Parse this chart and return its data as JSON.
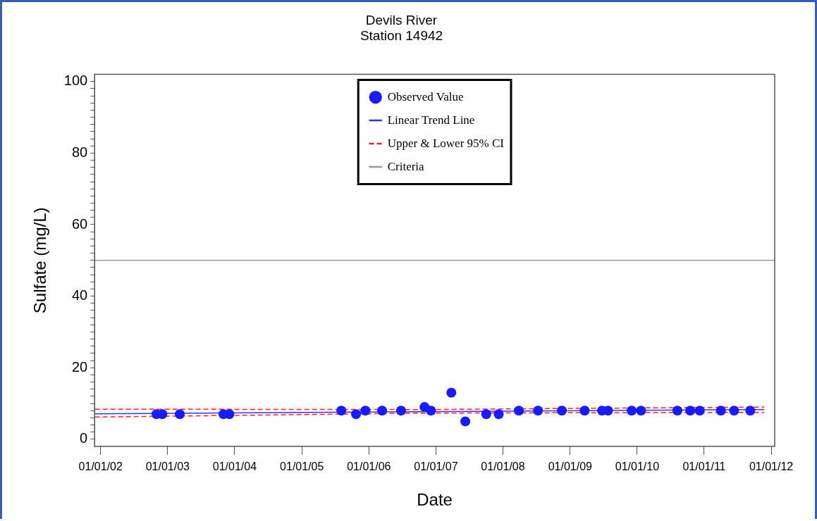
{
  "chart_data": {
    "type": "scatter",
    "title": "Devils River",
    "subtitle": "Station 14942",
    "xlabel": "Date",
    "ylabel": "Sulfate (mg/L)",
    "xlim": [
      "2001-11-29",
      "2012-01-20"
    ],
    "xticks": [
      {
        "value": "2002-01-01",
        "label": "01/01/02"
      },
      {
        "value": "2003-01-01",
        "label": "01/01/03"
      },
      {
        "value": "2004-01-01",
        "label": "01/01/04"
      },
      {
        "value": "2005-01-01",
        "label": "01/01/05"
      },
      {
        "value": "2006-01-01",
        "label": "01/01/06"
      },
      {
        "value": "2007-01-01",
        "label": "01/01/07"
      },
      {
        "value": "2008-01-01",
        "label": "01/01/08"
      },
      {
        "value": "2009-01-01",
        "label": "01/01/09"
      },
      {
        "value": "2010-01-01",
        "label": "01/01/10"
      },
      {
        "value": "2011-01-01",
        "label": "01/01/11"
      },
      {
        "value": "2012-01-01",
        "label": "01/01/12"
      }
    ],
    "ylim": [
      -2,
      102
    ],
    "yticks": [
      0,
      {
        "value": 2,
        "label": null
      },
      {
        "value": 4,
        "label": null
      },
      {
        "value": 6,
        "label": null
      },
      {
        "value": 8,
        "label": null
      },
      {
        "value": 10,
        "label": null
      },
      {
        "value": 12,
        "label": null
      },
      {
        "value": 14,
        "label": null
      },
      {
        "value": 16,
        "label": null
      },
      {
        "value": 18,
        "label": null
      },
      20,
      {
        "value": 22,
        "label": null
      },
      {
        "value": 24,
        "label": null
      },
      {
        "value": 26,
        "label": null
      },
      {
        "value": 28,
        "label": null
      },
      {
        "value": 30,
        "label": null
      },
      {
        "value": 32,
        "label": null
      },
      {
        "value": 34,
        "label": null
      },
      {
        "value": 36,
        "label": null
      },
      {
        "value": 38,
        "label": null
      },
      40,
      {
        "value": 42,
        "label": null
      },
      {
        "value": 44,
        "label": null
      },
      {
        "value": 46,
        "label": null
      },
      {
        "value": 48,
        "label": null
      },
      {
        "value": 50,
        "label": null
      },
      {
        "value": 52,
        "label": null
      },
      {
        "value": 54,
        "label": null
      },
      {
        "value": 56,
        "label": null
      },
      {
        "value": 58,
        "label": null
      },
      60,
      {
        "value": 62,
        "label": null
      },
      {
        "value": 64,
        "label": null
      },
      {
        "value": 66,
        "label": null
      },
      {
        "value": 68,
        "label": null
      },
      {
        "value": 70,
        "label": null
      },
      {
        "value": 72,
        "label": null
      },
      {
        "value": 74,
        "label": null
      },
      {
        "value": 76,
        "label": null
      },
      {
        "value": 78,
        "label": null
      },
      80,
      {
        "value": 82,
        "label": null
      },
      {
        "value": 84,
        "label": null
      },
      {
        "value": 86,
        "label": null
      },
      {
        "value": 88,
        "label": null
      },
      {
        "value": 90,
        "label": null
      },
      {
        "value": 92,
        "label": null
      },
      {
        "value": 94,
        "label": null
      },
      {
        "value": 96,
        "label": null
      },
      {
        "value": 98,
        "label": null
      },
      100
    ],
    "grid": false,
    "legend": "top",
    "series": [
      {
        "name": "Observed Value",
        "marker": "circle",
        "color": "#1a1aff",
        "x": [
          "2002-11-01",
          "2002-12-03",
          "2003-03-08",
          "2003-11-01",
          "2003-12-03",
          "2005-08-04",
          "2005-10-23",
          "2005-12-13",
          "2006-03-14",
          "2006-06-25",
          "2006-10-31",
          "2006-12-05",
          "2007-03-26",
          "2007-06-10",
          "2007-10-02",
          "2007-12-09",
          "2008-03-28",
          "2008-07-10",
          "2008-11-17",
          "2009-03-21",
          "2009-06-24",
          "2009-07-26",
          "2009-12-02",
          "2010-01-22",
          "2010-08-08",
          "2010-10-17",
          "2010-12-08",
          "2011-04-02",
          "2011-06-13",
          "2011-09-09"
        ],
        "values": [
          7,
          7,
          7,
          7,
          7,
          8,
          7,
          8,
          8,
          8,
          9,
          8,
          13,
          5,
          7,
          7,
          8,
          8,
          8,
          8,
          8,
          8,
          8,
          8,
          8,
          8,
          8,
          8,
          8,
          8
        ]
      },
      {
        "name": "Linear Trend Line",
        "type": "line",
        "line_style": "solid",
        "color": "#3333ff",
        "x": [
          "2001-12-01",
          "2011-11-24"
        ],
        "values": [
          7.1,
          8.3
        ]
      },
      {
        "name": "Upper & Lower 95% CI",
        "type": "line",
        "line_style": "dashed",
        "color": "#ff2020",
        "x": [
          "2001-12-01",
          "2006-11-01",
          "2011-11-24"
        ],
        "values": [
          8.4,
          8.3,
          9.0
        ]
      },
      {
        "type": "line",
        "line_style": "dashed",
        "color": "#ff2020",
        "x": [
          "2001-12-01",
          "2006-11-01",
          "2011-11-24"
        ],
        "values": [
          6.2,
          7.3,
          7.5
        ]
      },
      {
        "name": "Criteria",
        "type": "line",
        "line_style": "solid",
        "color": "#999999",
        "x": [
          "2001-11-29",
          "2012-01-20"
        ],
        "values": [
          50,
          50
        ]
      }
    ]
  }
}
